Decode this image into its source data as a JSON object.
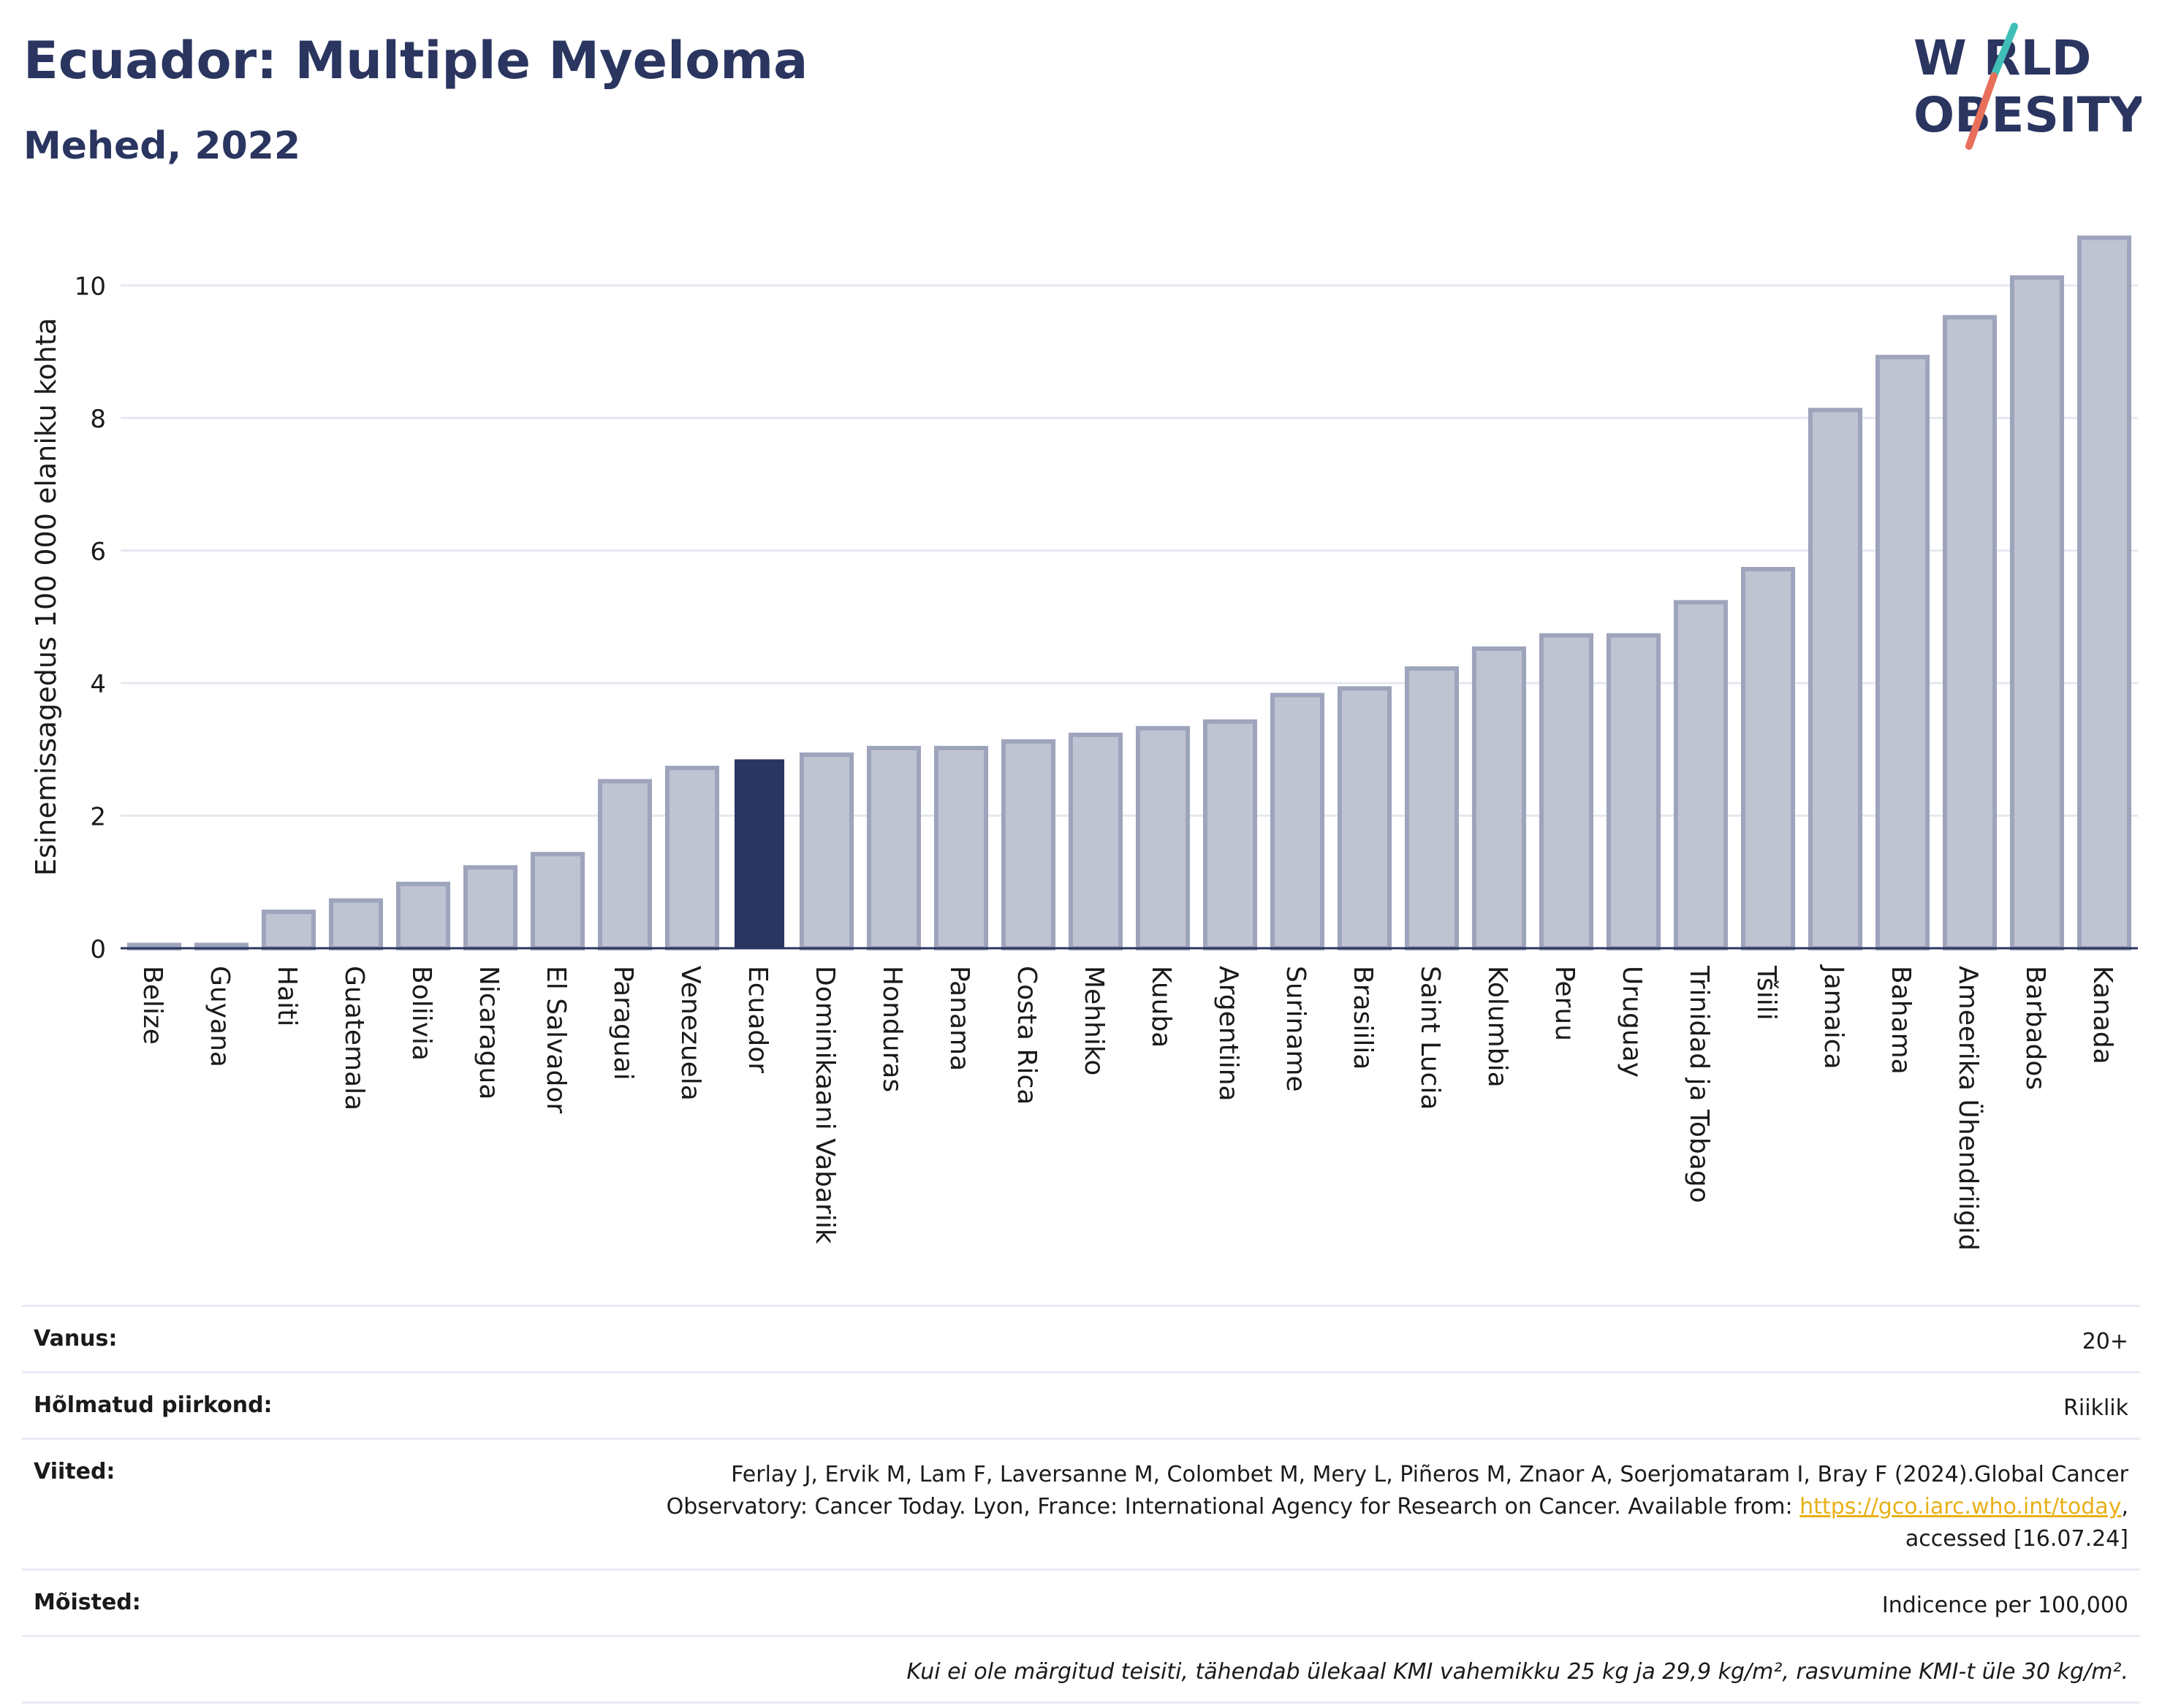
{
  "header": {
    "title": "Ecuador: Multiple Myeloma",
    "subtitle": "Mehed, 2022"
  },
  "logo": {
    "line1": "W  RLD",
    "line2": "OBESITY",
    "colors": {
      "text": "#2a3560",
      "slash_top": "#3fbfb8",
      "slash_bottom": "#e8705a"
    }
  },
  "colors": {
    "bar": "#bfc3d2",
    "bar_stroke": "#9ea4bb",
    "highlight": "#2a3560",
    "grid": "#e6e8ef",
    "axis": "#2a3560"
  },
  "chart_data": {
    "type": "bar",
    "ylabel": "Esinemissagedus 100 000 elaniku kohta",
    "ylim": [
      0,
      11
    ],
    "yticks": [
      0,
      2,
      4,
      6,
      8,
      10
    ],
    "grid": true,
    "highlight": "Ecuador",
    "categories": [
      "Belize",
      "Guyana",
      "Haiti",
      "Guatemala",
      "Boliivia",
      "Nicaragua",
      "El Salvador",
      "Paraguai",
      "Venezuela",
      "Ecuador",
      "Dominikaani Vabariik",
      "Honduras",
      "Panama",
      "Costa Rica",
      "Mehhiko",
      "Kuuba",
      "Argentiina",
      "Suriname",
      "Brasiilia",
      "Saint Lucia",
      "Kolumbia",
      "Peruu",
      "Uruguay",
      "Trinidad ja Tobago",
      "Tšiili",
      "Jamaica",
      "Bahama",
      "Ameerika Ühendriigid",
      "Barbados",
      "Kanada"
    ],
    "values": [
      0.05,
      0.05,
      0.55,
      0.72,
      0.97,
      1.22,
      1.42,
      2.52,
      2.72,
      2.85,
      2.92,
      3.02,
      3.02,
      3.12,
      3.22,
      3.32,
      3.42,
      3.82,
      3.92,
      4.22,
      4.52,
      4.72,
      4.72,
      5.22,
      5.72,
      8.12,
      8.92,
      9.52,
      10.12,
      10.72
    ]
  },
  "meta": {
    "age_label": "Vanus:",
    "age_value": "20+",
    "region_label": "Hõlmatud piirkond:",
    "region_value": "Riiklik",
    "refs_label": "Viited:",
    "refs_text1": "Ferlay J, Ervik M, Lam F, Laversanne M, Colombet M, Mery L, Piñeros M, Znaor A, Soerjomataram I, Bray F (2024).Global Cancer Observatory: Cancer Today. Lyon, France: International Agency for Research on Cancer. Available from: ",
    "refs_link": "https://gco.iarc.who.int/today",
    "refs_text2": ", accessed [16.07.24]",
    "defs_label": "Mõisted:",
    "defs_value": "Indicence per 100,000",
    "note": "Kui ei ole märgitud teisiti, tähendab ülekaal KMI vahemikku 25 kg ja 29,9 kg/m², rasvumine KMI-t üle 30 kg/m²."
  }
}
